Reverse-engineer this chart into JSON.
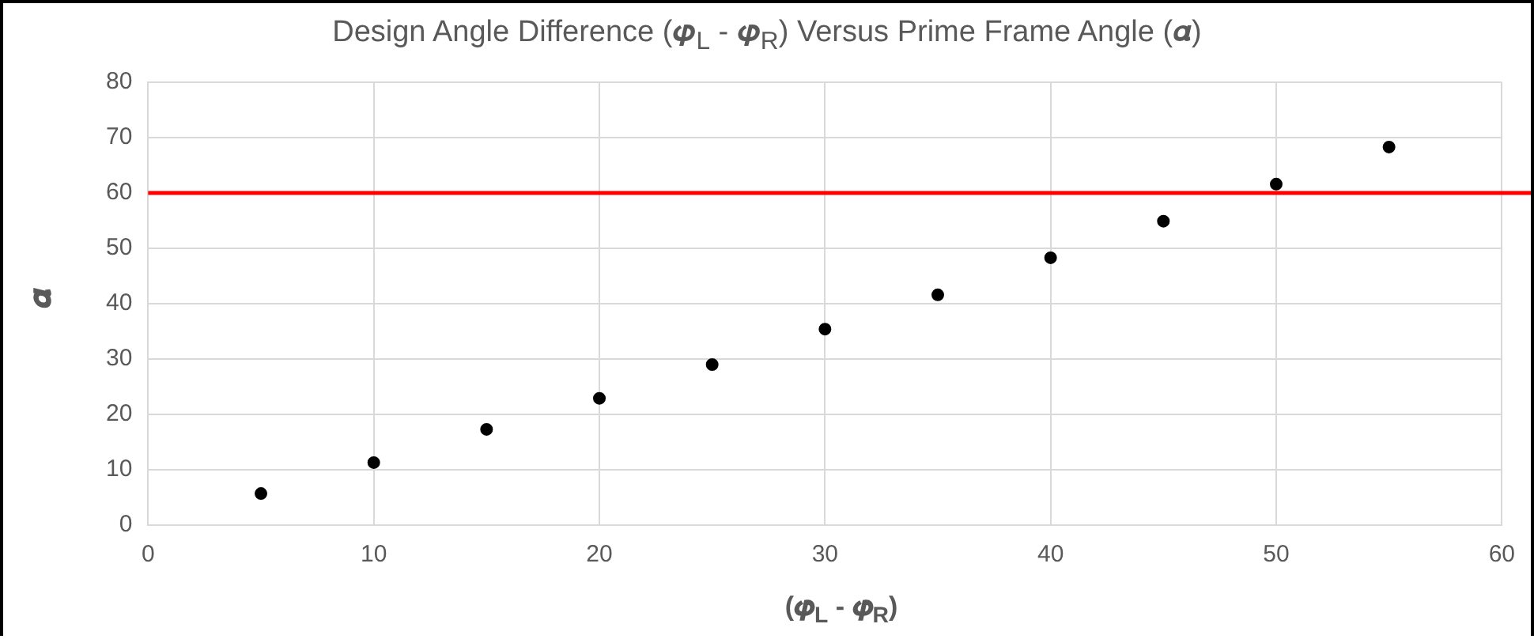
{
  "chart_data": {
    "type": "scatter",
    "title": "Design Angle Difference (𝝋$_{L}$ - 𝝋$_{R}$) Versus Prime Frame Angle (𝜶)",
    "xlabel": "(𝝋$_{L}$ - 𝝋$_{R}$)",
    "ylabel": "𝜶",
    "x": [
      5,
      10,
      15,
      20,
      25,
      30,
      35,
      40,
      45,
      50,
      55
    ],
    "series": [
      {
        "color": "#000000",
        "values": [
          5.7,
          11.3,
          17.3,
          22.9,
          29,
          35.4,
          41.6,
          48.3,
          54.9,
          61.6,
          68.3
        ]
      }
    ],
    "xlim": [
      0,
      60
    ],
    "xticks": [
      0,
      10,
      20,
      30,
      40,
      50,
      60
    ],
    "ylim": [
      0,
      80
    ],
    "yticks": [
      0,
      10,
      20,
      30,
      40,
      50,
      60,
      70,
      80
    ],
    "ref_lines": [
      {
        "axis": "y",
        "value": 60,
        "color": "#ff0000"
      }
    ],
    "grid": true,
    "legend": false,
    "marker": "circle"
  }
}
